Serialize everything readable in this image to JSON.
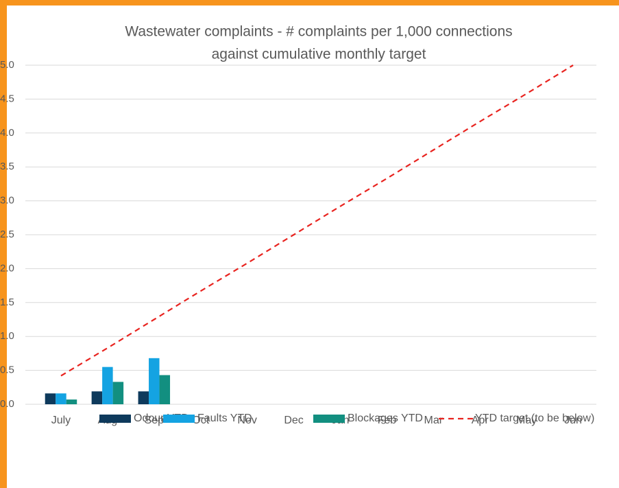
{
  "chart_data": {
    "type": "bar",
    "title": [
      "Wastewater complaints - # complaints per 1,000 connections",
      "against cumulative monthly target"
    ],
    "categories": [
      "July",
      "Aug",
      "Sep",
      "Oct",
      "Nov",
      "Dec",
      "Jan",
      "Feb",
      "Mar",
      "Apr",
      "May",
      "Jun"
    ],
    "series": [
      {
        "name": "Odour YTD",
        "color": "#0e3a5c",
        "values": [
          0.16,
          0.19,
          0.19,
          null,
          null,
          null,
          null,
          null,
          null,
          null,
          null,
          null
        ]
      },
      {
        "name": "Faults YTD",
        "color": "#14a3e2",
        "values": [
          0.16,
          0.55,
          0.68,
          null,
          null,
          null,
          null,
          null,
          null,
          null,
          null,
          null
        ]
      },
      {
        "name": "Blockages YTD",
        "color": "#128f80",
        "values": [
          0.07,
          0.33,
          0.43,
          null,
          null,
          null,
          null,
          null,
          null,
          null,
          null,
          null
        ]
      },
      {
        "name": "YTD target (to be below)",
        "color": "#e8231f",
        "type": "line",
        "dashed": true,
        "values": [
          0.42,
          0.83,
          1.25,
          1.67,
          2.08,
          2.5,
          2.92,
          3.33,
          3.75,
          4.17,
          4.58,
          5.0
        ]
      }
    ],
    "ylim": [
      0,
      5
    ],
    "yticks": [
      {
        "value": 0,
        "label": "0.0"
      },
      {
        "value": 0.5,
        "label": "0.5"
      },
      {
        "value": 1,
        "label": "1.0"
      },
      {
        "value": 1.5,
        "label": "1.5"
      },
      {
        "value": 2,
        "label": "2.0"
      },
      {
        "value": 2.5,
        "label": "2.5"
      },
      {
        "value": 3,
        "label": "3.0"
      },
      {
        "value": 3.5,
        "label": "3.5"
      },
      {
        "value": 4,
        "label": "4.0"
      },
      {
        "value": 4.5,
        "label": "4.5"
      },
      {
        "value": 5,
        "label": "5.0"
      }
    ],
    "grid": true,
    "legend": "bottom"
  }
}
